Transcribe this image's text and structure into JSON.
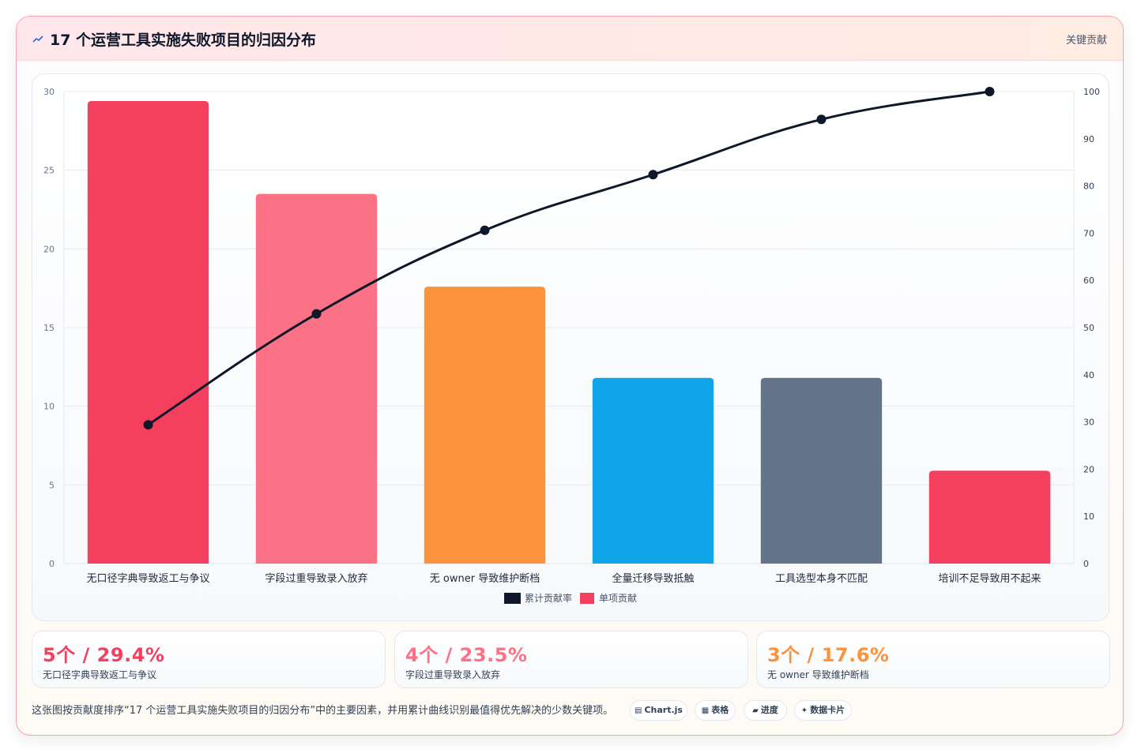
{
  "header": {
    "title": "17 个运营工具实施失败项目的归因分布",
    "badge": "关键贡献"
  },
  "colors": {
    "red": "#f43f5e",
    "pink": "#fb7185",
    "orange": "#fb923c",
    "sky": "#0ea5e9",
    "slate": "#64748b",
    "line": "#0f172a"
  },
  "chart_data": {
    "type": "bar",
    "categories": [
      "无口径字典导致返工与争议",
      "字段过重导致录入放弃",
      "无 owner 导致维护断档",
      "全量迁移导致抵触",
      "工具选型本身不匹配",
      "培训不足导致用不起来"
    ],
    "series": [
      {
        "name": "累计贡献率",
        "type": "line",
        "axis": "right",
        "values": [
          29.4,
          52.9,
          70.6,
          82.4,
          94.1,
          100
        ],
        "color": "#0f172a"
      },
      {
        "name": "单项贡献",
        "type": "bar",
        "axis": "left",
        "values": [
          29.4,
          23.5,
          17.6,
          11.8,
          11.8,
          5.9
        ],
        "colors": [
          "#f43f5e",
          "#fb7185",
          "#fb923c",
          "#0ea5e9",
          "#64748b",
          "#f43f5e"
        ],
        "legend_color": "#f43f5e"
      }
    ],
    "y_left": {
      "min": 0,
      "max": 30,
      "ticks": [
        0,
        5,
        10,
        15,
        20,
        25,
        30
      ]
    },
    "y_right": {
      "min": 0,
      "max": 100,
      "ticks": [
        0,
        10,
        20,
        30,
        40,
        50,
        60,
        70,
        80,
        90,
        100
      ]
    },
    "grid": true,
    "legend_position": "bottom"
  },
  "kpis": [
    {
      "value": "5个 / 29.4%",
      "label": "无口径字典导致返工与争议",
      "color": "#f43f5e"
    },
    {
      "value": "4个 / 23.5%",
      "label": "字段过重导致录入放弃",
      "color": "#fb7185"
    },
    {
      "value": "3个 / 17.6%",
      "label": "无 owner 导致维护断档",
      "color": "#fb923c"
    }
  ],
  "footer": {
    "note": "这张图按贡献度排序“17 个运营工具实施失败项目的归因分布”中的主要因素，并用累计曲线识别最值得优先解决的少数关键项。",
    "tags": [
      {
        "icon": "▤",
        "label": "Chart.js"
      },
      {
        "icon": "▦",
        "label": "表格"
      },
      {
        "icon": "▰",
        "label": "进度"
      },
      {
        "icon": "✦",
        "label": "数据卡片"
      }
    ]
  }
}
